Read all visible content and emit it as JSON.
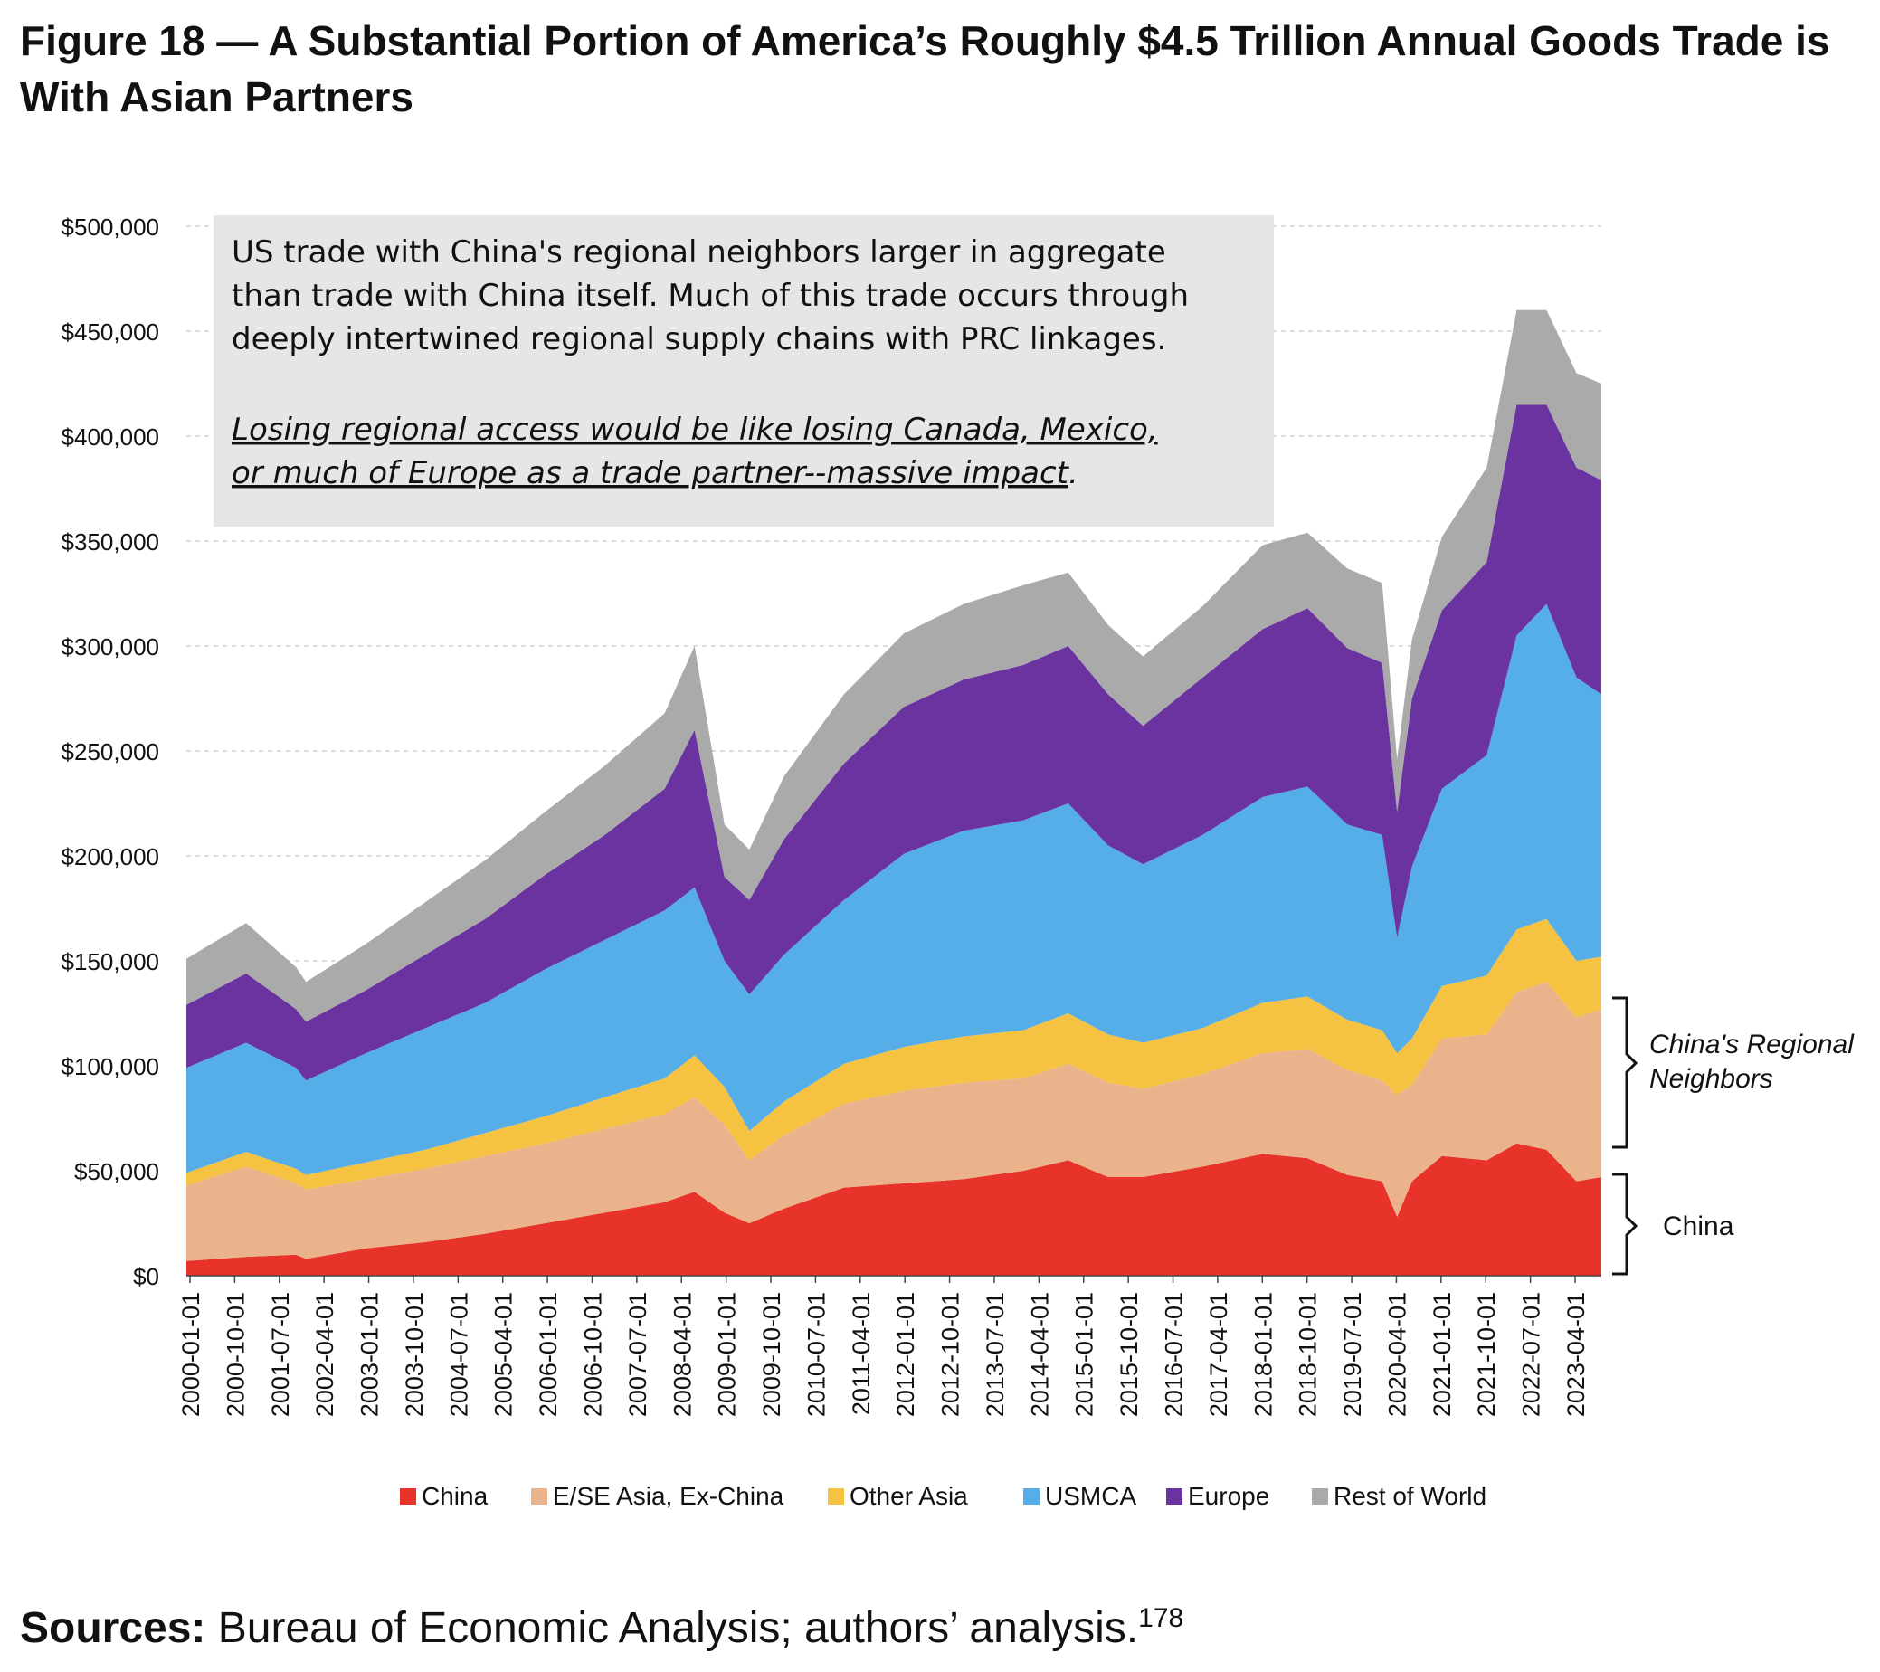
{
  "figure_title": "Figure 18 — A Substantial Portion of America’s Roughly $4.5 Trillion Annual Goods Trade is With Asian Partners",
  "sources": {
    "label": "Sources:",
    "text": " Bureau of Economic Analysis; authors’ analysis.",
    "footnote": "178"
  },
  "callout": {
    "lines": [
      "US trade with China's regional neighbors larger in aggregate",
      "than trade with China itself. Much of this trade occurs through",
      "deeply intertwined regional supply chains with PRC linkages."
    ],
    "emphasis_lines": [
      "Losing regional access would be like losing Canada, Mexico,",
      "or much of Europe as a trade partner--massive impact"
    ],
    "emphasis_end": "."
  },
  "brackets": {
    "regional": [
      "China's Regional",
      "Neighbors"
    ],
    "china": "China"
  },
  "colors": {
    "China": "#e8332a",
    "E/SE Asia, Ex-China": "#ebb38b",
    "Other Asia": "#f5c242",
    "USMCA": "#56aee8",
    "Europe": "#6a33a0",
    "Rest of World": "#aaaaaa"
  },
  "chart_data": {
    "type": "area",
    "stacked": true,
    "title": "",
    "xlabel": "",
    "ylabel": "",
    "ylim": [
      0,
      500000
    ],
    "yticks": [
      0,
      50000,
      100000,
      150000,
      200000,
      250000,
      300000,
      350000,
      400000,
      450000,
      500000
    ],
    "ytick_labels": [
      "$0",
      "$50,000",
      "$100,000",
      "$150,000",
      "$200,000",
      "$250,000",
      "$300,000",
      "$350,000",
      "$400,000",
      "$450,000",
      "$500,000"
    ],
    "grid": "horizontal dashed",
    "legend_position": "bottom",
    "xtick_labels": [
      "2000-01-01",
      "2000-10-01",
      "2001-07-01",
      "2002-04-01",
      "2003-01-01",
      "2003-10-01",
      "2004-07-01",
      "2005-04-01",
      "2006-01-01",
      "2006-10-01",
      "2007-07-01",
      "2008-04-01",
      "2009-01-01",
      "2009-10-01",
      "2010-07-01",
      "2011-04-01",
      "2012-01-01",
      "2012-10-01",
      "2013-07-01",
      "2014-04-01",
      "2015-01-01",
      "2015-10-01",
      "2016-07-01",
      "2017-04-01",
      "2018-01-01",
      "2018-10-01",
      "2019-07-01",
      "2020-04-01",
      "2021-01-01",
      "2021-10-01",
      "2022-07-01",
      "2023-04-01"
    ],
    "x": [
      "2000-01",
      "2001-01",
      "2001-11",
      "2002-01",
      "2003-01",
      "2004-01",
      "2005-01",
      "2006-01",
      "2007-01",
      "2008-01",
      "2008-07",
      "2009-01",
      "2009-06",
      "2010-01",
      "2011-01",
      "2012-01",
      "2013-01",
      "2014-01",
      "2014-10",
      "2015-06",
      "2016-01",
      "2017-01",
      "2018-01",
      "2018-10",
      "2019-06",
      "2020-01",
      "2020-04",
      "2020-07",
      "2021-01",
      "2021-10",
      "2022-04",
      "2022-10",
      "2023-04",
      "2023-09"
    ],
    "series": [
      {
        "name": "China",
        "values": [
          7000,
          9000,
          10000,
          8000,
          13000,
          16000,
          20000,
          25000,
          30000,
          35000,
          40000,
          30000,
          25000,
          32000,
          42000,
          44000,
          46000,
          50000,
          55000,
          47000,
          47000,
          52000,
          58000,
          56000,
          48000,
          45000,
          28000,
          45000,
          57000,
          55000,
          63000,
          60000,
          45000,
          47000
        ]
      },
      {
        "name": "E/SE Asia, Ex-China",
        "values": [
          36000,
          43000,
          34000,
          33000,
          33000,
          35000,
          37000,
          38000,
          40000,
          42000,
          45000,
          42000,
          30000,
          35000,
          40000,
          44000,
          46000,
          44000,
          46000,
          45000,
          42000,
          44000,
          48000,
          52000,
          50000,
          48000,
          58000,
          46000,
          56000,
          60000,
          72000,
          80000,
          78000,
          80000
        ]
      },
      {
        "name": "Other Asia",
        "values": [
          6000,
          7000,
          7000,
          7000,
          8000,
          9000,
          11000,
          13000,
          15000,
          17000,
          20000,
          18000,
          14000,
          16000,
          19000,
          21000,
          22000,
          23000,
          24000,
          23000,
          22000,
          22000,
          24000,
          25000,
          24000,
          24000,
          20000,
          22000,
          25000,
          28000,
          30000,
          30000,
          27000,
          25000
        ]
      },
      {
        "name": "USMCA",
        "values": [
          50000,
          52000,
          48000,
          45000,
          52000,
          58000,
          62000,
          70000,
          75000,
          80000,
          80000,
          60000,
          65000,
          70000,
          78000,
          92000,
          98000,
          100000,
          100000,
          90000,
          85000,
          92000,
          98000,
          100000,
          93000,
          93000,
          55000,
          82000,
          94000,
          105000,
          140000,
          150000,
          135000,
          125000
        ]
      },
      {
        "name": "Europe",
        "values": [
          30000,
          33000,
          28000,
          28000,
          30000,
          35000,
          40000,
          45000,
          50000,
          58000,
          75000,
          40000,
          45000,
          55000,
          65000,
          70000,
          72000,
          74000,
          75000,
          72000,
          66000,
          75000,
          80000,
          85000,
          84000,
          82000,
          60000,
          80000,
          85000,
          92000,
          110000,
          95000,
          100000,
          102000
        ]
      },
      {
        "name": "Rest of World",
        "values": [
          22000,
          24000,
          20000,
          19000,
          22000,
          25000,
          28000,
          30000,
          33000,
          36000,
          40000,
          25000,
          24000,
          30000,
          33000,
          35000,
          36000,
          38000,
          35000,
          33000,
          33000,
          34000,
          40000,
          36000,
          38000,
          38000,
          25000,
          28000,
          35000,
          45000,
          45000,
          45000,
          45000,
          46000
        ]
      }
    ]
  }
}
